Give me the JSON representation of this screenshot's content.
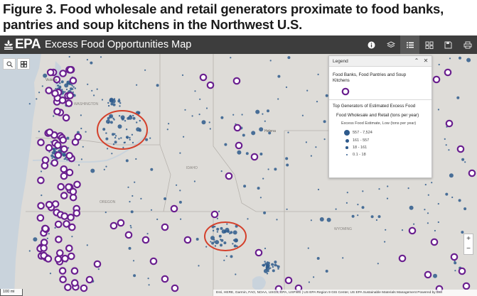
{
  "caption": "Figure 3. Food wholesale and retail generators proximate to food banks, pantries and soup kitchens in the Northwest U.S.",
  "header": {
    "logo_text": "EPA",
    "app_title": "Excess Food Opportunities Map",
    "bg_color": "#3d3d3d",
    "tools": [
      {
        "name": "info-icon"
      },
      {
        "name": "layers-icon"
      },
      {
        "name": "legend-list-icon",
        "active": true
      },
      {
        "name": "basemap-gallery-icon"
      },
      {
        "name": "save-icon"
      },
      {
        "name": "print-icon"
      }
    ]
  },
  "map": {
    "state_labels": [
      "WASHINGTON",
      "OREGON",
      "IDAHO",
      "WYOMING"
    ],
    "city_labels": [
      "Victoria",
      "Helena"
    ],
    "highlight_color": "#d4402b",
    "food_bank_color": "#6a1f8f",
    "generator_color": "#2e5a8c"
  },
  "legend": {
    "title": "Legend",
    "food_banks_label": "Food Banks, Food Pantries and Soup Kitchens",
    "generators_heading": "Top Generators of Estimated Excess Food",
    "wholesale_retail_label": "Food Wholesale and Retail (tons per year)",
    "estimate_label": "Excess Food Estimate, Low (tons per year)",
    "classes": [
      {
        "label": "557 - 7,524"
      },
      {
        "label": "161 - 557"
      },
      {
        "label": "18 - 161"
      },
      {
        "label": "0.1 - 18"
      }
    ]
  },
  "scale": {
    "label": "100 mi"
  },
  "attribution": "Esri, HERE, Garmin, FAO, NOAA, USGS, EPA, USFWS | US EPA Region 9 GIS Center, US EPA Sustainable Materials Management   Powered by Esri"
}
